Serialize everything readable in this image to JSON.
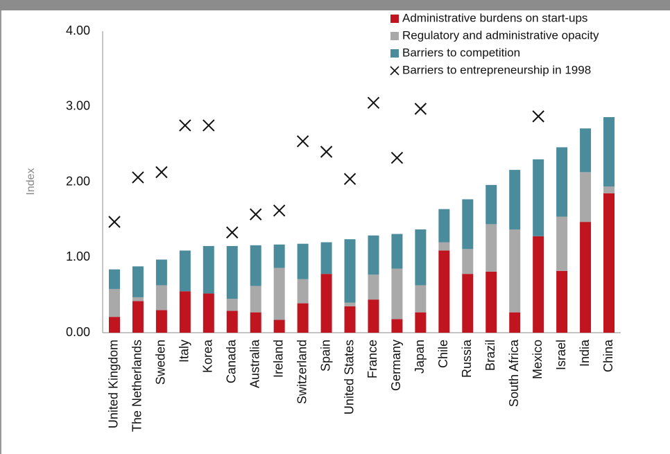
{
  "chart_data": {
    "type": "bar",
    "stacked": true,
    "y_label": "Index",
    "categories": [
      "United Kingdom",
      "The Netherlands",
      "Sweden",
      "Italy",
      "Korea",
      "Canada",
      "Australia",
      "Ireland",
      "Switzerland",
      "Spain",
      "United States",
      "France",
      "Germany",
      "Japan",
      "Chile",
      "Russia",
      "Brazil",
      "South Africa",
      "Mexico",
      "Israel",
      "India",
      "China"
    ],
    "series": [
      {
        "name": "Administrative burdens on start-ups",
        "type": "bar",
        "color": "#c0141f",
        "values": [
          0.21,
          0.42,
          0.3,
          0.55,
          0.52,
          0.29,
          0.27,
          0.17,
          0.39,
          0.78,
          0.35,
          0.44,
          0.18,
          0.27,
          1.09,
          0.78,
          0.81,
          0.27,
          1.28,
          0.82,
          1.47,
          1.85
        ]
      },
      {
        "name": "Regulatory and administrative opacity",
        "type": "bar",
        "color": "#a9a9a9",
        "values": [
          0.37,
          0.05,
          0.33,
          0,
          0,
          0.16,
          0.35,
          0.69,
          0.32,
          0,
          0.05,
          0.33,
          0.67,
          0.36,
          0.11,
          0.33,
          0.63,
          1.1,
          0,
          0.72,
          0.66,
          0.09
        ]
      },
      {
        "name": "Barriers to competition",
        "type": "bar",
        "color": "#4a8c9c",
        "values": [
          0.26,
          0.41,
          0.34,
          0.54,
          0.63,
          0.7,
          0.54,
          0.31,
          0.47,
          0.42,
          0.84,
          0.52,
          0.46,
          0.74,
          0.44,
          0.66,
          0.52,
          0.79,
          1.02,
          0.92,
          0.58,
          0.92
        ]
      },
      {
        "name": "Barriers to entrepreneurship in 1998",
        "type": "scatter",
        "marker": "x",
        "color": "#111111",
        "values": [
          1.47,
          2.06,
          2.13,
          2.75,
          2.75,
          1.33,
          1.57,
          1.62,
          2.54,
          2.4,
          2.04,
          3.05,
          2.32,
          2.97,
          null,
          null,
          null,
          null,
          2.87,
          null,
          null,
          null
        ]
      }
    ],
    "ylim": [
      0,
      4
    ],
    "yticks": [
      {
        "value": 0,
        "label": "0.00"
      },
      {
        "value": 1,
        "label": "1.00"
      },
      {
        "value": 2,
        "label": "2.00"
      },
      {
        "value": 3,
        "label": "3.00"
      },
      {
        "value": 4,
        "label": "4.00"
      }
    ],
    "grid": false,
    "legend": "top-right"
  }
}
